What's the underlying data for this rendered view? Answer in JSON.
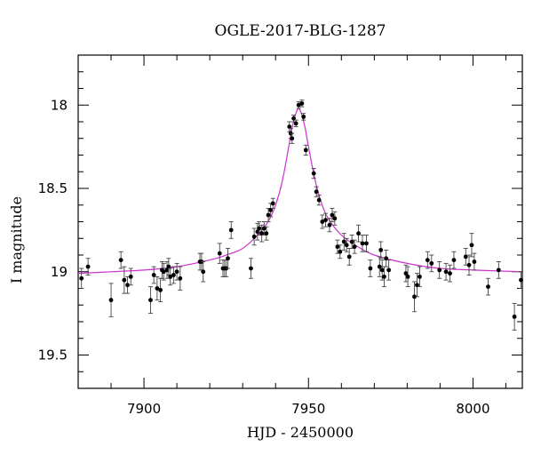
{
  "chart_data": {
    "type": "scatter",
    "title": "OGLE-2017-BLG-1287",
    "xlabel": "HJD - 2450000",
    "ylabel": "I magnitude",
    "xlim": [
      7880,
      8015
    ],
    "ylim": [
      19.7,
      17.7
    ],
    "y_inverted": true,
    "grid": false,
    "xticks": [
      7900,
      7950,
      8000
    ],
    "xtick_labels": [
      "7900",
      "7950",
      "8000"
    ],
    "yticks": [
      18,
      18.5,
      19,
      19.5
    ],
    "ytick_labels": [
      "18",
      "18.5",
      "19",
      "19.5"
    ],
    "colors": {
      "data": "#000000",
      "model": "#cc33cc"
    },
    "model_curve": {
      "name": "",
      "baseline": 19.01,
      "peak_time": 7947.0,
      "peak_mag": 18.02,
      "x": [
        7880,
        7890,
        7900,
        7910,
        7920,
        7925,
        7930,
        7935,
        7938,
        7940,
        7942,
        7944,
        7945,
        7946,
        7947,
        7948,
        7949,
        7950,
        7952,
        7954,
        7956,
        7960,
        7965,
        7970,
        7980,
        7990,
        8000,
        8015
      ],
      "y": [
        19.01,
        19.0,
        18.99,
        18.97,
        18.93,
        18.9,
        18.86,
        18.77,
        18.69,
        18.6,
        18.46,
        18.25,
        18.14,
        18.06,
        18.02,
        18.06,
        18.14,
        18.25,
        18.45,
        18.59,
        18.68,
        18.78,
        18.85,
        18.9,
        18.95,
        18.98,
        18.99,
        19.0
      ]
    },
    "series": [
      {
        "name": "",
        "x": [
          7881,
          7883,
          7890,
          7893,
          7894,
          7895,
          7896,
          7902,
          7903,
          7904,
          7905,
          7905.5,
          7906,
          7907,
          7907.5,
          7908,
          7909,
          7910,
          7911,
          7917,
          7917.5,
          7918,
          7923,
          7924,
          7924.5,
          7925,
          7925.5,
          7926.5,
          7932.5,
          7933.5,
          7934.5,
          7935,
          7935.8,
          7936.5,
          7937.2,
          7937.8,
          7938.5,
          7939.2,
          7944.2,
          7944.6,
          7945,
          7945.5,
          7946.2,
          7947,
          7948,
          7948.5,
          7949.2,
          7951.6,
          7952.4,
          7953.2,
          7954.2,
          7955.2,
          7956.4,
          7957.2,
          7958,
          7958.8,
          7959.6,
          7960.8,
          7961.6,
          7962.4,
          7963.2,
          7964,
          7965.2,
          7966.4,
          7967.6,
          7968.8,
          7971.6,
          7972,
          7972.4,
          7973,
          7973.6,
          7974.4,
          7979.6,
          7980.2,
          7982.2,
          7983,
          7983.8,
          7986.2,
          7987.4,
          7989.8,
          7991.8,
          7993,
          7994.2,
          7997.8,
          7998.8,
          7999.6,
          8000.4,
          8004.6,
          8007.8,
          8012.6,
          8014.6
        ],
        "y": [
          19.04,
          18.97,
          19.17,
          18.93,
          19.05,
          19.08,
          19.03,
          19.17,
          19.02,
          19.1,
          19.11,
          18.99,
          19.0,
          18.99,
          18.97,
          19.03,
          19.02,
          19.0,
          19.04,
          18.94,
          18.94,
          19.0,
          18.89,
          18.98,
          18.98,
          18.98,
          18.92,
          18.75,
          18.98,
          18.79,
          18.76,
          18.74,
          18.77,
          18.74,
          18.77,
          18.66,
          18.63,
          18.59,
          18.13,
          18.17,
          18.2,
          18.08,
          18.11,
          18.0,
          17.99,
          18.07,
          18.27,
          18.41,
          18.52,
          18.57,
          18.7,
          18.69,
          18.72,
          18.66,
          18.68,
          18.85,
          18.88,
          18.82,
          18.84,
          18.91,
          18.82,
          18.85,
          18.77,
          18.83,
          18.83,
          18.98,
          18.97,
          18.87,
          18.99,
          19.03,
          18.92,
          18.99,
          19.01,
          19.03,
          19.15,
          19.08,
          19.03,
          18.93,
          18.95,
          18.99,
          19.0,
          19.01,
          18.93,
          18.91,
          18.96,
          18.84,
          18.94,
          19.09,
          18.99,
          19.27,
          19.05
        ],
        "err": [
          0.06,
          0.05,
          0.1,
          0.05,
          0.08,
          0.05,
          0.05,
          0.08,
          0.05,
          0.07,
          0.07,
          0.05,
          0.05,
          0.05,
          0.05,
          0.05,
          0.05,
          0.05,
          0.07,
          0.05,
          0.05,
          0.06,
          0.06,
          0.05,
          0.05,
          0.05,
          0.06,
          0.05,
          0.06,
          0.05,
          0.05,
          0.04,
          0.05,
          0.04,
          0.04,
          0.04,
          0.04,
          0.03,
          0.03,
          0.03,
          0.03,
          0.02,
          0.02,
          0.02,
          0.02,
          0.02,
          0.03,
          0.03,
          0.03,
          0.03,
          0.04,
          0.04,
          0.04,
          0.04,
          0.04,
          0.04,
          0.04,
          0.05,
          0.04,
          0.05,
          0.04,
          0.04,
          0.05,
          0.05,
          0.05,
          0.05,
          0.06,
          0.05,
          0.06,
          0.06,
          0.05,
          0.06,
          0.05,
          0.06,
          0.09,
          0.07,
          0.06,
          0.05,
          0.05,
          0.05,
          0.05,
          0.05,
          0.05,
          0.05,
          0.06,
          0.07,
          0.05,
          0.05,
          0.05,
          0.08,
          0.05
        ]
      }
    ]
  }
}
